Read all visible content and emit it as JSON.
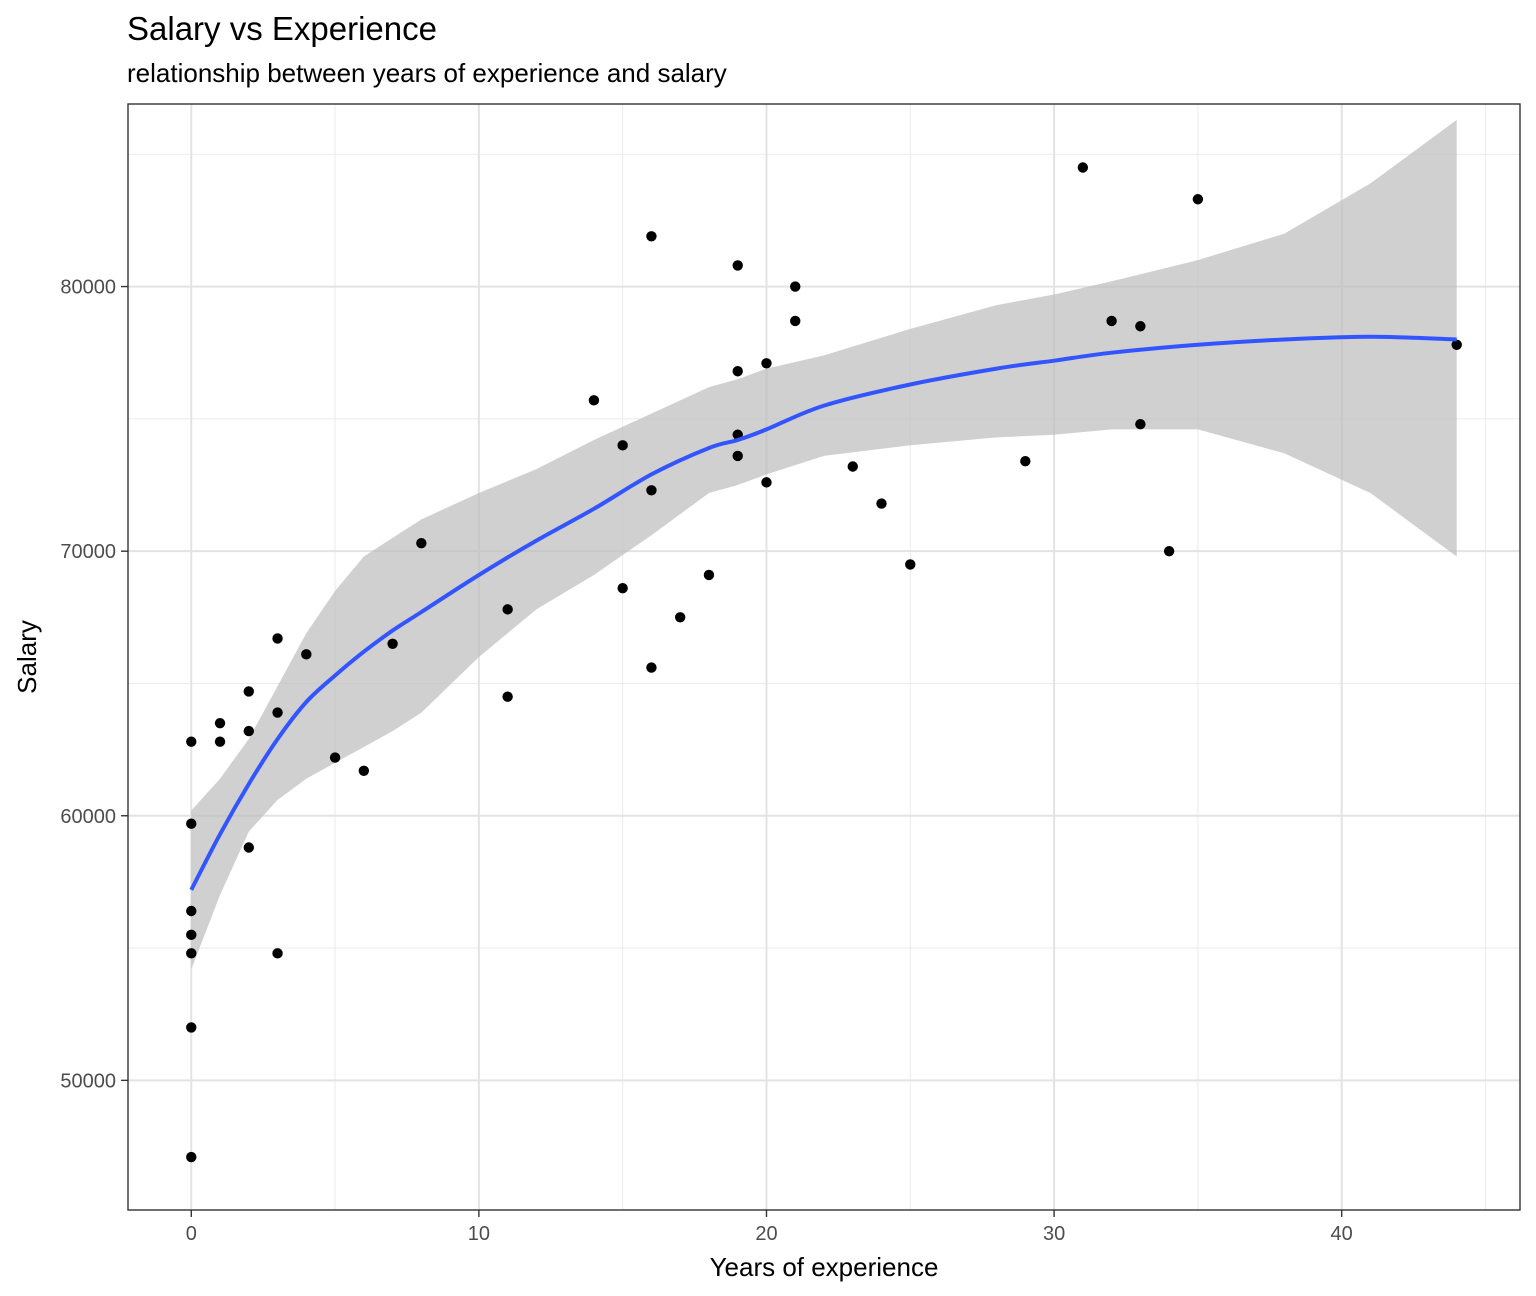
{
  "chart_data": {
    "type": "scatter",
    "title": "Salary vs Experience",
    "subtitle": "relationship between years of experience and salary",
    "xlabel": "Years of experience",
    "ylabel": "Salary",
    "xlim": [
      -2.2,
      46.2
    ],
    "ylim": [
      45100,
      86900
    ],
    "x_ticks": [
      0,
      10,
      20,
      30,
      40
    ],
    "y_ticks": [
      50000,
      60000,
      70000,
      80000
    ],
    "x_tick_labels": [
      "0",
      "10",
      "20",
      "30",
      "40"
    ],
    "y_tick_labels": [
      "50000",
      "60000",
      "70000",
      "80000"
    ],
    "grid": true,
    "points": [
      {
        "x": 0,
        "y": 62800
      },
      {
        "x": 0,
        "y": 59700
      },
      {
        "x": 0,
        "y": 56400
      },
      {
        "x": 0,
        "y": 55500
      },
      {
        "x": 0,
        "y": 54800
      },
      {
        "x": 0,
        "y": 52000
      },
      {
        "x": 0,
        "y": 47100
      },
      {
        "x": 1,
        "y": 63500
      },
      {
        "x": 1,
        "y": 62800
      },
      {
        "x": 2,
        "y": 64700
      },
      {
        "x": 2,
        "y": 63200
      },
      {
        "x": 2,
        "y": 58800
      },
      {
        "x": 3,
        "y": 66700
      },
      {
        "x": 3,
        "y": 63900
      },
      {
        "x": 3,
        "y": 54800
      },
      {
        "x": 4,
        "y": 66100
      },
      {
        "x": 5,
        "y": 62200
      },
      {
        "x": 6,
        "y": 61700
      },
      {
        "x": 7,
        "y": 66500
      },
      {
        "x": 8,
        "y": 70300
      },
      {
        "x": 11,
        "y": 67800
      },
      {
        "x": 11,
        "y": 64500
      },
      {
        "x": 14,
        "y": 75700
      },
      {
        "x": 15,
        "y": 74000
      },
      {
        "x": 15,
        "y": 68600
      },
      {
        "x": 16,
        "y": 81900
      },
      {
        "x": 16,
        "y": 72300
      },
      {
        "x": 16,
        "y": 65600
      },
      {
        "x": 17,
        "y": 67500
      },
      {
        "x": 18,
        "y": 69100
      },
      {
        "x": 19,
        "y": 80800
      },
      {
        "x": 19,
        "y": 76800
      },
      {
        "x": 19,
        "y": 74400
      },
      {
        "x": 19,
        "y": 73600
      },
      {
        "x": 20,
        "y": 77100
      },
      {
        "x": 20,
        "y": 72600
      },
      {
        "x": 21,
        "y": 80000
      },
      {
        "x": 21,
        "y": 78700
      },
      {
        "x": 23,
        "y": 73200
      },
      {
        "x": 24,
        "y": 71800
      },
      {
        "x": 25,
        "y": 69500
      },
      {
        "x": 29,
        "y": 73400
      },
      {
        "x": 31,
        "y": 84500
      },
      {
        "x": 32,
        "y": 78700
      },
      {
        "x": 33,
        "y": 78500
      },
      {
        "x": 33,
        "y": 74800
      },
      {
        "x": 34,
        "y": 70000
      },
      {
        "x": 35,
        "y": 83300
      },
      {
        "x": 44,
        "y": 77800
      }
    ],
    "smooth": {
      "color": "#3355ff",
      "band_color": "#bebebe",
      "x": [
        0,
        1,
        2,
        3,
        4,
        5,
        6,
        7,
        8,
        10,
        12,
        14,
        16,
        18,
        19,
        20,
        22,
        25,
        28,
        30,
        32,
        35,
        38,
        41,
        44
      ],
      "y": [
        57200,
        59300,
        61200,
        62900,
        64300,
        65300,
        66200,
        67000,
        67700,
        69100,
        70400,
        71600,
        72900,
        73900,
        74200,
        74600,
        75500,
        76300,
        76900,
        77200,
        77500,
        77800,
        78000,
        78100,
        78000
      ],
      "lower": [
        54200,
        57000,
        59400,
        60600,
        61400,
        62000,
        62600,
        63200,
        63900,
        66000,
        67800,
        69100,
        70600,
        72200,
        72500,
        72900,
        73600,
        74000,
        74300,
        74400,
        74600,
        74600,
        73700,
        72200,
        69800
      ],
      "upper": [
        60200,
        61400,
        62900,
        64900,
        66900,
        68500,
        69800,
        70500,
        71200,
        72200,
        73100,
        74200,
        75200,
        76200,
        76500,
        76900,
        77400,
        78400,
        79300,
        79700,
        80200,
        81000,
        82000,
        83900,
        86300
      ]
    }
  }
}
